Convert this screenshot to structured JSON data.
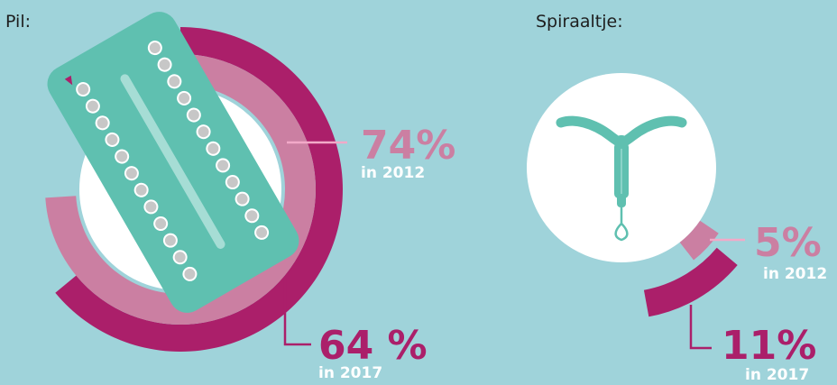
{
  "colors": {
    "background": "#9fd3da",
    "year_2012": "#cb7fa2",
    "year_2017": "#ab1f6a",
    "device": "#5fc0b0",
    "circle": "#ffffff",
    "label_line": "#f2a9c8"
  },
  "chart_data": [
    {
      "type": "radial-bar",
      "title": "Pil:",
      "icon": "pill-pack-icon",
      "series": [
        {
          "name": "in 2012",
          "value": 74,
          "label": "74%",
          "color": "#cb7fa2"
        },
        {
          "name": "in 2017",
          "value": 64,
          "label": "64 %",
          "color": "#ab1f6a"
        }
      ],
      "unit": "%"
    },
    {
      "type": "radial-bar",
      "title": "Spiraaltje:",
      "icon": "iud-icon",
      "series": [
        {
          "name": "in 2012",
          "value": 5,
          "label": "5%",
          "color": "#cb7fa2"
        },
        {
          "name": "in 2017",
          "value": 11,
          "label": "11%",
          "color": "#ab1f6a"
        }
      ],
      "unit": "%"
    }
  ]
}
